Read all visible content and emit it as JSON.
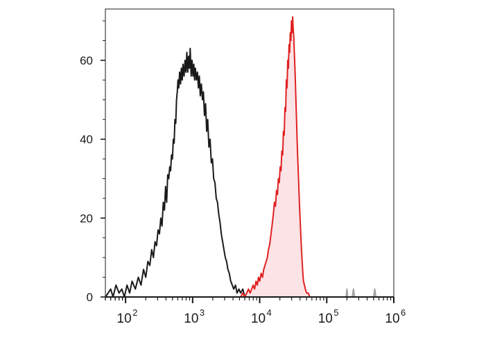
{
  "chart_data": {
    "type": "area",
    "xscale": "log",
    "xlim": [
      50,
      1000000
    ],
    "ylim": [
      0,
      73
    ],
    "grid": false,
    "legend": "none",
    "x_ticks": [
      {
        "value": 100,
        "base": "10",
        "exp": "2"
      },
      {
        "value": 1000,
        "base": "10",
        "exp": "3"
      },
      {
        "value": 10000,
        "base": "10",
        "exp": "4"
      },
      {
        "value": 100000,
        "base": "10",
        "exp": "5"
      },
      {
        "value": 1000000,
        "base": "10",
        "exp": "6"
      }
    ],
    "y_ticks": [
      {
        "value": 0,
        "label": "0"
      },
      {
        "value": 20,
        "label": "20"
      },
      {
        "value": 40,
        "label": "40"
      },
      {
        "value": 60,
        "label": "60"
      }
    ],
    "series": [
      {
        "color": "#1a1a1a",
        "fill": "#ffffff",
        "points": [
          [
            50,
            0
          ],
          [
            55,
            1
          ],
          [
            60,
            2
          ],
          [
            65,
            0
          ],
          [
            72,
            3
          ],
          [
            80,
            1
          ],
          [
            88,
            2
          ],
          [
            96,
            0
          ],
          [
            105,
            3
          ],
          [
            115,
            1
          ],
          [
            125,
            4
          ],
          [
            140,
            2
          ],
          [
            155,
            5
          ],
          [
            170,
            3
          ],
          [
            185,
            7
          ],
          [
            200,
            5
          ],
          [
            215,
            9
          ],
          [
            230,
            8
          ],
          [
            245,
            12
          ],
          [
            260,
            10
          ],
          [
            275,
            14
          ],
          [
            290,
            13
          ],
          [
            305,
            17
          ],
          [
            320,
            16
          ],
          [
            335,
            20
          ],
          [
            350,
            18
          ],
          [
            365,
            24
          ],
          [
            380,
            22
          ],
          [
            395,
            28
          ],
          [
            410,
            24
          ],
          [
            425,
            31
          ],
          [
            440,
            30
          ],
          [
            455,
            33
          ],
          [
            470,
            32
          ],
          [
            485,
            36
          ],
          [
            500,
            35
          ],
          [
            515,
            40
          ],
          [
            530,
            39
          ],
          [
            545,
            45
          ],
          [
            560,
            44
          ],
          [
            575,
            50
          ],
          [
            590,
            52
          ],
          [
            605,
            55
          ],
          [
            620,
            53
          ],
          [
            640,
            57
          ],
          [
            660,
            54
          ],
          [
            680,
            58
          ],
          [
            700,
            55
          ],
          [
            720,
            59
          ],
          [
            745,
            56
          ],
          [
            770,
            60
          ],
          [
            795,
            57
          ],
          [
            820,
            62
          ],
          [
            845,
            57
          ],
          [
            870,
            61
          ],
          [
            895,
            58
          ],
          [
            920,
            63
          ],
          [
            950,
            56
          ],
          [
            980,
            60
          ],
          [
            1010,
            56
          ],
          [
            1040,
            59
          ],
          [
            1070,
            55
          ],
          [
            1100,
            58
          ],
          [
            1140,
            55
          ],
          [
            1180,
            57
          ],
          [
            1220,
            53
          ],
          [
            1260,
            56
          ],
          [
            1300,
            51
          ],
          [
            1350,
            54
          ],
          [
            1400,
            50
          ],
          [
            1450,
            52
          ],
          [
            1500,
            46
          ],
          [
            1560,
            49
          ],
          [
            1620,
            42
          ],
          [
            1680,
            45
          ],
          [
            1750,
            38
          ],
          [
            1820,
            40
          ],
          [
            1900,
            34
          ],
          [
            1980,
            35
          ],
          [
            2060,
            30
          ],
          [
            2150,
            29
          ],
          [
            2250,
            25
          ],
          [
            2350,
            24
          ],
          [
            2450,
            21
          ],
          [
            2560,
            19
          ],
          [
            2680,
            16
          ],
          [
            2800,
            14
          ],
          [
            2930,
            12
          ],
          [
            3070,
            10
          ],
          [
            3210,
            9
          ],
          [
            3360,
            7
          ],
          [
            3520,
            6
          ],
          [
            3700,
            4
          ],
          [
            3900,
            3
          ],
          [
            4100,
            2
          ],
          [
            4350,
            3
          ],
          [
            4600,
            1
          ],
          [
            4900,
            2
          ],
          [
            5200,
            1
          ],
          [
            5600,
            2
          ],
          [
            6000,
            0
          ],
          [
            6500,
            1
          ],
          [
            7000,
            0
          ],
          [
            7600,
            1
          ],
          [
            8200,
            0
          ],
          [
            9000,
            0
          ],
          [
            10000,
            1
          ],
          [
            11000,
            0
          ]
        ]
      },
      {
        "color": "#e02020",
        "fill": "#fbe3e6",
        "points": [
          [
            5200,
            0
          ],
          [
            5600,
            1
          ],
          [
            6000,
            0
          ],
          [
            6400,
            1
          ],
          [
            6800,
            2
          ],
          [
            7200,
            1
          ],
          [
            7600,
            2
          ],
          [
            8000,
            3
          ],
          [
            8400,
            2
          ],
          [
            8800,
            4
          ],
          [
            9200,
            3
          ],
          [
            9600,
            5
          ],
          [
            10000,
            4
          ],
          [
            10500,
            6
          ],
          [
            11000,
            5
          ],
          [
            11500,
            7
          ],
          [
            12000,
            8
          ],
          [
            12500,
            9
          ],
          [
            13000,
            10
          ],
          [
            13500,
            12
          ],
          [
            14000,
            13
          ],
          [
            14500,
            15
          ],
          [
            15000,
            17
          ],
          [
            15500,
            19
          ],
          [
            16000,
            21
          ],
          [
            16600,
            24
          ],
          [
            17200,
            23
          ],
          [
            17800,
            27
          ],
          [
            18400,
            26
          ],
          [
            19000,
            30
          ],
          [
            19600,
            29
          ],
          [
            20200,
            33
          ],
          [
            20800,
            32
          ],
          [
            21400,
            37
          ],
          [
            22000,
            36
          ],
          [
            22600,
            42
          ],
          [
            23200,
            41
          ],
          [
            23800,
            48
          ],
          [
            24400,
            47
          ],
          [
            25000,
            55
          ],
          [
            25600,
            53
          ],
          [
            26200,
            60
          ],
          [
            26800,
            58
          ],
          [
            27400,
            64
          ],
          [
            28000,
            62
          ],
          [
            28600,
            67
          ],
          [
            29200,
            65
          ],
          [
            29800,
            70
          ],
          [
            30400,
            67
          ],
          [
            31000,
            71
          ],
          [
            31600,
            68
          ],
          [
            32200,
            66
          ],
          [
            32800,
            62
          ],
          [
            33400,
            59
          ],
          [
            34000,
            55
          ],
          [
            34700,
            50
          ],
          [
            35400,
            45
          ],
          [
            36100,
            40
          ],
          [
            36800,
            36
          ],
          [
            37500,
            32
          ],
          [
            38300,
            28
          ],
          [
            39100,
            24
          ],
          [
            40000,
            20
          ],
          [
            41000,
            16
          ],
          [
            42000,
            12
          ],
          [
            43000,
            9
          ],
          [
            44000,
            6
          ],
          [
            45000,
            4
          ],
          [
            46500,
            3
          ],
          [
            48000,
            2
          ],
          [
            50000,
            1
          ],
          [
            53000,
            1
          ],
          [
            56000,
            0
          ],
          [
            60000,
            0
          ]
        ]
      },
      {
        "color": "#a0a0a0",
        "fill": "#d9d9d9",
        "points": [
          [
            195000,
            0
          ],
          [
            200000,
            2
          ],
          [
            205000,
            0
          ],
          [
            240000,
            0
          ],
          [
            250000,
            2
          ],
          [
            260000,
            0
          ],
          [
            500000,
            0
          ],
          [
            520000,
            2
          ],
          [
            540000,
            0
          ]
        ]
      }
    ]
  }
}
